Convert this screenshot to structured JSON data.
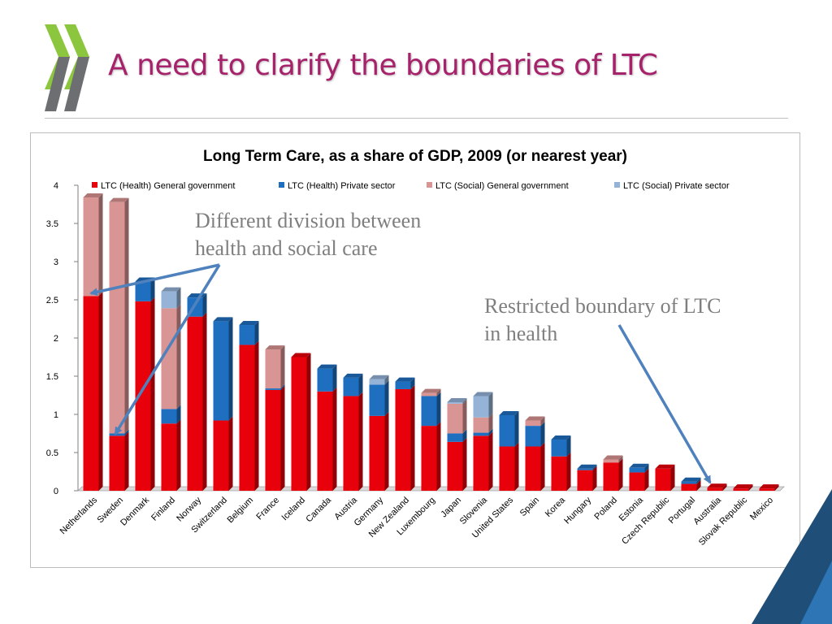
{
  "slide": {
    "title": "A need to clarify the boundaries of LTC",
    "title_color": "#a6226b",
    "logo_colors": [
      "#8cc63f",
      "#6d6e71"
    ]
  },
  "annotations": [
    {
      "text_lines": [
        "Different division between",
        "health and social care"
      ]
    },
    {
      "text_lines": [
        "Restricted boundary of LTC",
        "in health"
      ]
    }
  ],
  "arrow_color": "#4f81bd",
  "corner_colors": [
    "#1f4e79",
    "#2e75b6"
  ],
  "chart_data": {
    "type": "bar",
    "stacked": true,
    "title": "Long Term Care, as a share of GDP, 2009 (or nearest year)",
    "xlabel": "",
    "ylabel": "",
    "ylim": [
      0,
      4
    ],
    "yticks": [
      "0",
      "0.5",
      "1",
      "1.5",
      "2",
      "2.5",
      "3",
      "3.5",
      "4"
    ],
    "legend_position": "top",
    "categories": [
      "Netherlands",
      "Sweden",
      "Denmark",
      "Finland",
      "Norway",
      "Switzerland",
      "Belgium",
      "France",
      "Iceland",
      "Canada",
      "Austria",
      "Germany",
      "New Zealand",
      "Luxembourg",
      "Japan",
      "Slovenia",
      "United States",
      "Spain",
      "Korea",
      "Hungary",
      "Poland",
      "Estonia",
      "Czech Republic",
      "Portugal",
      "Australia",
      "Slovak Republic",
      "Mexico"
    ],
    "series": [
      {
        "name": "LTC (Health) General government",
        "color": "#e8000b",
        "values": [
          2.55,
          0.72,
          2.48,
          0.88,
          2.28,
          0.92,
          1.91,
          1.32,
          1.75,
          1.3,
          1.24,
          0.98,
          1.33,
          0.85,
          0.64,
          0.72,
          0.58,
          0.58,
          0.45,
          0.27,
          0.37,
          0.24,
          0.29,
          0.09,
          0.04,
          0.03,
          0.03
        ]
      },
      {
        "name": "LTC (Health) Private sector",
        "color": "#1f6fc1",
        "values": [
          0.0,
          0.03,
          0.26,
          0.19,
          0.25,
          1.3,
          0.26,
          0.02,
          0.0,
          0.3,
          0.24,
          0.41,
          0.1,
          0.39,
          0.11,
          0.04,
          0.41,
          0.27,
          0.22,
          0.02,
          0.0,
          0.06,
          0.0,
          0.03,
          0.0,
          0.0,
          0.0
        ]
      },
      {
        "name": "LTC (Social) General government",
        "color": "#d99594",
        "values": [
          1.29,
          3.03,
          0.0,
          1.32,
          0.0,
          0.0,
          0.0,
          0.51,
          0.0,
          0.0,
          0.0,
          0.0,
          0.0,
          0.04,
          0.39,
          0.2,
          0.0,
          0.07,
          0.0,
          0.0,
          0.04,
          0.0,
          0.0,
          0.0,
          0.0,
          0.0,
          0.0
        ]
      },
      {
        "name": "LTC (Social) Private sector",
        "color": "#95b3d7",
        "values": [
          0.0,
          0.0,
          0.0,
          0.22,
          0.0,
          0.0,
          0.0,
          0.0,
          0.0,
          0.0,
          0.0,
          0.07,
          0.0,
          0.0,
          0.02,
          0.28,
          0.0,
          0.0,
          0.0,
          0.0,
          0.0,
          0.0,
          0.0,
          0.0,
          0.0,
          0.0,
          0.0
        ]
      }
    ]
  }
}
